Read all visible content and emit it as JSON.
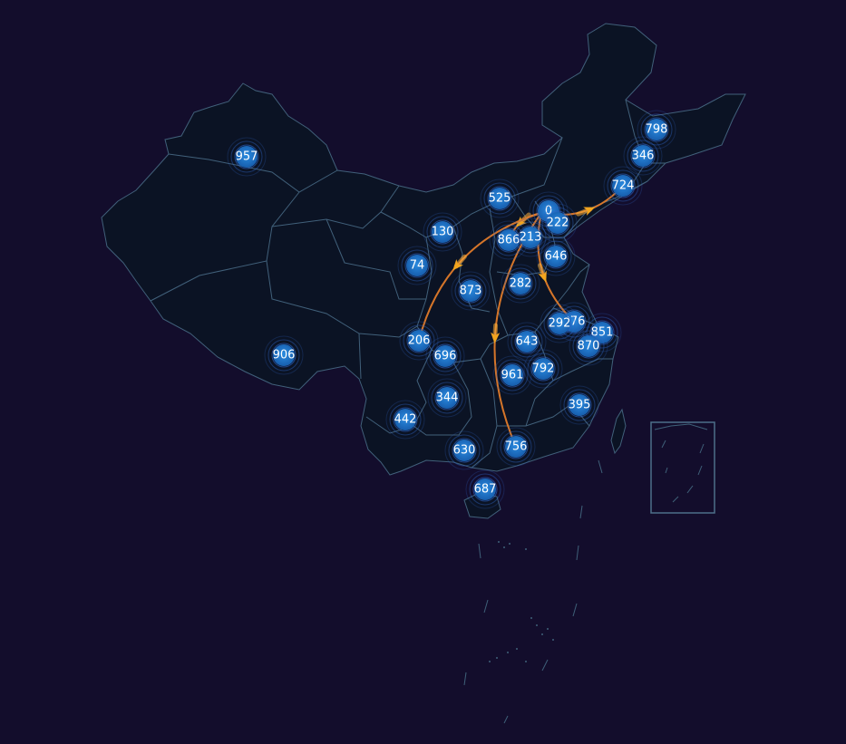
{
  "map": {
    "colors": {
      "background": "#130d2c",
      "land": "#0b1324",
      "border": "#41607a",
      "marker": "#1f73c8",
      "marker_ring": "#2f63c4",
      "flow": "#e07a2a",
      "flow_arrow": "#f2a51f"
    },
    "markers": [
      {
        "id": "xinjiang",
        "value": "957"
      },
      {
        "id": "tibet",
        "value": "906"
      },
      {
        "id": "heilongjiang",
        "value": "798"
      },
      {
        "id": "jilin",
        "value": "346"
      },
      {
        "id": "liaoning",
        "value": "724"
      },
      {
        "id": "inner-mongolia",
        "value": "525"
      },
      {
        "id": "beijing",
        "value": "0"
      },
      {
        "id": "tianjin",
        "value": "222"
      },
      {
        "id": "shanxi",
        "value": "866"
      },
      {
        "id": "hebei",
        "value": "213"
      },
      {
        "id": "shandong",
        "value": "646"
      },
      {
        "id": "ningxia",
        "value": "130"
      },
      {
        "id": "gansu",
        "value": "74"
      },
      {
        "id": "shaanxi",
        "value": "873"
      },
      {
        "id": "henan",
        "value": "282"
      },
      {
        "id": "jiangsu",
        "value": "276"
      },
      {
        "id": "anhui",
        "value": "292"
      },
      {
        "id": "shanghai",
        "value": "851"
      },
      {
        "id": "zhejiang",
        "value": "870"
      },
      {
        "id": "hubei",
        "value": "643"
      },
      {
        "id": "sichuan",
        "value": "206"
      },
      {
        "id": "chongqing",
        "value": "696"
      },
      {
        "id": "hunan",
        "value": "961"
      },
      {
        "id": "jiangxi",
        "value": "792"
      },
      {
        "id": "guizhou",
        "value": "344"
      },
      {
        "id": "fujian",
        "value": "395"
      },
      {
        "id": "yunnan",
        "value": "442"
      },
      {
        "id": "guangxi",
        "value": "630"
      },
      {
        "id": "guangdong",
        "value": "756"
      },
      {
        "id": "hainan",
        "value": "687"
      }
    ],
    "flows": [
      {
        "from": "beijing",
        "to": "liaoning"
      },
      {
        "from": "beijing",
        "to": "shanxi"
      },
      {
        "from": "beijing",
        "to": "sichuan"
      },
      {
        "from": "beijing",
        "to": "guangdong"
      },
      {
        "from": "beijing",
        "to": "jiangsu"
      }
    ]
  }
}
